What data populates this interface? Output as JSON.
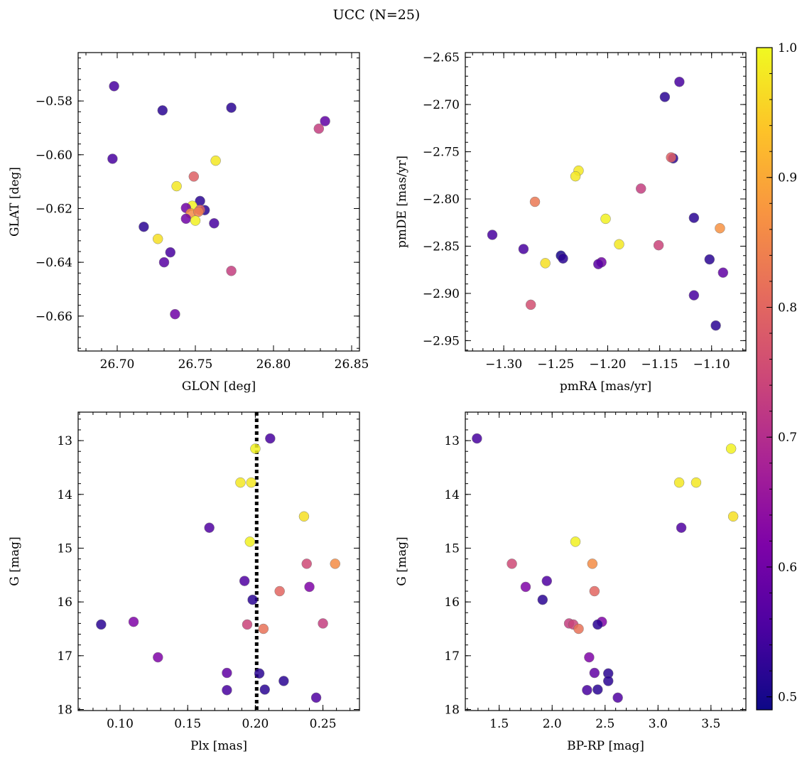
{
  "figure": {
    "title": "UCC (N=25)"
  },
  "colorbar": {
    "range": [
      0.49,
      1.0
    ],
    "ticks": [
      "0.5",
      "0.6",
      "0.7",
      "0.8",
      "0.9",
      "1.0"
    ],
    "tick_values": [
      0.5,
      0.6,
      0.7,
      0.8,
      0.9,
      1.0
    ],
    "colormap": "plasma"
  },
  "chart_data": [
    {
      "type": "scatter",
      "xlabel": "GLON [deg]",
      "ylabel": "GLAT [deg]",
      "xlim": [
        26.675,
        26.855
      ],
      "ylim": [
        -0.673,
        -0.562
      ],
      "xticks": [
        26.7,
        26.75,
        26.8,
        26.85
      ],
      "xtick_labels": [
        "26.70",
        "26.75",
        "26.80",
        "26.85"
      ],
      "yticks": [
        -0.66,
        -0.64,
        -0.62,
        -0.6,
        -0.58
      ],
      "ytick_labels": [
        "−0.66",
        "−0.64",
        "−0.62",
        "−0.60",
        "−0.58"
      ],
      "points": [
        {
          "x": 26.698,
          "y": -0.5745,
          "c": 0.55
        },
        {
          "x": 26.729,
          "y": -0.5835,
          "c": 0.52
        },
        {
          "x": 26.773,
          "y": -0.5825,
          "c": 0.52
        },
        {
          "x": 26.833,
          "y": -0.5875,
          "c": 0.58
        },
        {
          "x": 26.829,
          "y": -0.5903,
          "c": 0.73
        },
        {
          "x": 26.697,
          "y": -0.6015,
          "c": 0.55
        },
        {
          "x": 26.763,
          "y": -0.6022,
          "c": 0.98
        },
        {
          "x": 26.749,
          "y": -0.6081,
          "c": 0.79
        },
        {
          "x": 26.738,
          "y": -0.6117,
          "c": 0.98
        },
        {
          "x": 26.753,
          "y": -0.6172,
          "c": 0.52
        },
        {
          "x": 26.748,
          "y": -0.619,
          "c": 0.99
        },
        {
          "x": 26.744,
          "y": -0.6198,
          "c": 0.6
        },
        {
          "x": 26.756,
          "y": -0.6206,
          "c": 0.52
        },
        {
          "x": 26.753,
          "y": -0.6205,
          "c": 0.79
        },
        {
          "x": 26.747,
          "y": -0.6218,
          "c": 0.86
        },
        {
          "x": 26.752,
          "y": -0.6212,
          "c": 0.84
        },
        {
          "x": 26.744,
          "y": -0.6238,
          "c": 0.6
        },
        {
          "x": 26.75,
          "y": -0.6245,
          "c": 0.99
        },
        {
          "x": 26.762,
          "y": -0.6255,
          "c": 0.55
        },
        {
          "x": 26.717,
          "y": -0.6268,
          "c": 0.52
        },
        {
          "x": 26.726,
          "y": -0.6313,
          "c": 0.97
        },
        {
          "x": 26.734,
          "y": -0.6363,
          "c": 0.55
        },
        {
          "x": 26.73,
          "y": -0.64,
          "c": 0.57
        },
        {
          "x": 26.773,
          "y": -0.6432,
          "c": 0.73
        },
        {
          "x": 26.737,
          "y": -0.6593,
          "c": 0.6
        }
      ]
    },
    {
      "type": "scatter",
      "xlabel": "pmRA [mas/yr]",
      "ylabel": "pmDE [mas/yr]",
      "xlim": [
        -1.337,
        -1.067
      ],
      "ylim": [
        -2.961,
        -2.645
      ],
      "xticks": [
        -1.3,
        -1.25,
        -1.2,
        -1.15,
        -1.1
      ],
      "xtick_labels": [
        "−1.30",
        "−1.25",
        "−1.20",
        "−1.15",
        "−1.10"
      ],
      "yticks": [
        -2.95,
        -2.9,
        -2.85,
        -2.8,
        -2.75,
        -2.7,
        -2.65
      ],
      "ytick_labels": [
        "−2.95",
        "−2.90",
        "−2.85",
        "−2.80",
        "−2.75",
        "−2.70",
        "−2.65"
      ],
      "points": [
        {
          "x": -1.131,
          "y": -2.676,
          "c": 0.55
        },
        {
          "x": -1.145,
          "y": -2.692,
          "c": 0.52
        },
        {
          "x": -1.137,
          "y": -2.757,
          "c": 0.52
        },
        {
          "x": -1.139,
          "y": -2.756,
          "c": 0.79
        },
        {
          "x": -1.228,
          "y": -2.77,
          "c": 0.98
        },
        {
          "x": -1.231,
          "y": -2.776,
          "c": 0.98
        },
        {
          "x": -1.168,
          "y": -2.789,
          "c": 0.73
        },
        {
          "x": -1.27,
          "y": -2.803,
          "c": 0.83
        },
        {
          "x": -1.117,
          "y": -2.82,
          "c": 0.52
        },
        {
          "x": -1.202,
          "y": -2.821,
          "c": 0.99
        },
        {
          "x": -1.092,
          "y": -2.831,
          "c": 0.87
        },
        {
          "x": -1.311,
          "y": -2.838,
          "c": 0.55
        },
        {
          "x": -1.189,
          "y": -2.848,
          "c": 0.98
        },
        {
          "x": -1.151,
          "y": -2.849,
          "c": 0.74
        },
        {
          "x": -1.281,
          "y": -2.853,
          "c": 0.55
        },
        {
          "x": -1.245,
          "y": -2.86,
          "c": 0.5
        },
        {
          "x": -1.243,
          "y": -2.863,
          "c": 0.52
        },
        {
          "x": -1.102,
          "y": -2.864,
          "c": 0.52
        },
        {
          "x": -1.206,
          "y": -2.867,
          "c": 0.6
        },
        {
          "x": -1.209,
          "y": -2.869,
          "c": 0.57
        },
        {
          "x": -1.26,
          "y": -2.868,
          "c": 0.97
        },
        {
          "x": -1.089,
          "y": -2.878,
          "c": 0.58
        },
        {
          "x": -1.117,
          "y": -2.902,
          "c": 0.55
        },
        {
          "x": -1.274,
          "y": -2.912,
          "c": 0.76
        },
        {
          "x": -1.096,
          "y": -2.934,
          "c": 0.52
        }
      ]
    },
    {
      "type": "scatter",
      "xlabel": "Plx [mas]",
      "ylabel": "G [mag]",
      "xlim": [
        0.069,
        0.277
      ],
      "ylim": [
        18.02,
        12.47
      ],
      "y_inverted": true,
      "vline": 0.201,
      "xticks": [
        0.1,
        0.15,
        0.2,
        0.25
      ],
      "xtick_labels": [
        "0.10",
        "0.15",
        "0.20",
        "0.25"
      ],
      "yticks": [
        13,
        14,
        15,
        16,
        17,
        18
      ],
      "ytick_labels": [
        "13",
        "14",
        "15",
        "16",
        "17",
        "18"
      ],
      "points": [
        {
          "x": 0.211,
          "y": 12.96,
          "c": 0.55
        },
        {
          "x": 0.2,
          "y": 13.15,
          "c": 0.99
        },
        {
          "x": 0.189,
          "y": 13.78,
          "c": 0.98
        },
        {
          "x": 0.197,
          "y": 13.78,
          "c": 0.98
        },
        {
          "x": 0.236,
          "y": 14.41,
          "c": 0.97
        },
        {
          "x": 0.166,
          "y": 14.62,
          "c": 0.56
        },
        {
          "x": 0.196,
          "y": 14.88,
          "c": 0.99
        },
        {
          "x": 0.238,
          "y": 15.29,
          "c": 0.75
        },
        {
          "x": 0.259,
          "y": 15.29,
          "c": 0.86
        },
        {
          "x": 0.192,
          "y": 15.61,
          "c": 0.56
        },
        {
          "x": 0.24,
          "y": 15.72,
          "c": 0.62
        },
        {
          "x": 0.218,
          "y": 15.8,
          "c": 0.8
        },
        {
          "x": 0.198,
          "y": 15.96,
          "c": 0.52
        },
        {
          "x": 0.11,
          "y": 16.37,
          "c": 0.62
        },
        {
          "x": 0.25,
          "y": 16.4,
          "c": 0.73
        },
        {
          "x": 0.194,
          "y": 16.42,
          "c": 0.74
        },
        {
          "x": 0.086,
          "y": 16.42,
          "c": 0.52
        },
        {
          "x": 0.206,
          "y": 16.5,
          "c": 0.82
        },
        {
          "x": 0.128,
          "y": 17.03,
          "c": 0.62
        },
        {
          "x": 0.179,
          "y": 17.32,
          "c": 0.58
        },
        {
          "x": 0.203,
          "y": 17.33,
          "c": 0.52
        },
        {
          "x": 0.221,
          "y": 17.47,
          "c": 0.52
        },
        {
          "x": 0.179,
          "y": 17.64,
          "c": 0.55
        },
        {
          "x": 0.207,
          "y": 17.63,
          "c": 0.52
        },
        {
          "x": 0.245,
          "y": 17.78,
          "c": 0.56
        }
      ]
    },
    {
      "type": "scatter",
      "xlabel": "BP-RP [mag]",
      "ylabel": "G [mag]",
      "xlim": [
        1.18,
        3.83
      ],
      "ylim": [
        18.02,
        12.47
      ],
      "y_inverted": true,
      "xticks": [
        1.5,
        2.0,
        2.5,
        3.0,
        3.5
      ],
      "xtick_labels": [
        "1.5",
        "2.0",
        "2.5",
        "3.0",
        "3.5"
      ],
      "yticks": [
        13,
        14,
        15,
        16,
        17,
        18
      ],
      "ytick_labels": [
        "13",
        "14",
        "15",
        "16",
        "17",
        "18"
      ],
      "points": [
        {
          "x": 1.29,
          "y": 12.96,
          "c": 0.55
        },
        {
          "x": 3.69,
          "y": 13.15,
          "c": 0.99
        },
        {
          "x": 3.2,
          "y": 13.78,
          "c": 0.98
        },
        {
          "x": 3.36,
          "y": 13.78,
          "c": 0.98
        },
        {
          "x": 3.71,
          "y": 14.41,
          "c": 0.97
        },
        {
          "x": 3.22,
          "y": 14.62,
          "c": 0.56
        },
        {
          "x": 2.22,
          "y": 14.88,
          "c": 0.99
        },
        {
          "x": 1.62,
          "y": 15.29,
          "c": 0.75
        },
        {
          "x": 2.38,
          "y": 15.29,
          "c": 0.86
        },
        {
          "x": 1.95,
          "y": 15.61,
          "c": 0.56
        },
        {
          "x": 1.75,
          "y": 15.72,
          "c": 0.62
        },
        {
          "x": 2.4,
          "y": 15.8,
          "c": 0.8
        },
        {
          "x": 1.91,
          "y": 15.96,
          "c": 0.52
        },
        {
          "x": 2.47,
          "y": 16.37,
          "c": 0.62
        },
        {
          "x": 2.16,
          "y": 16.4,
          "c": 0.73
        },
        {
          "x": 2.2,
          "y": 16.42,
          "c": 0.74
        },
        {
          "x": 2.43,
          "y": 16.42,
          "c": 0.52
        },
        {
          "x": 2.25,
          "y": 16.5,
          "c": 0.82
        },
        {
          "x": 2.35,
          "y": 17.03,
          "c": 0.62
        },
        {
          "x": 2.4,
          "y": 17.32,
          "c": 0.58
        },
        {
          "x": 2.53,
          "y": 17.33,
          "c": 0.52
        },
        {
          "x": 2.53,
          "y": 17.47,
          "c": 0.52
        },
        {
          "x": 2.33,
          "y": 17.64,
          "c": 0.55
        },
        {
          "x": 2.43,
          "y": 17.63,
          "c": 0.52
        },
        {
          "x": 2.62,
          "y": 17.78,
          "c": 0.56
        }
      ]
    }
  ]
}
